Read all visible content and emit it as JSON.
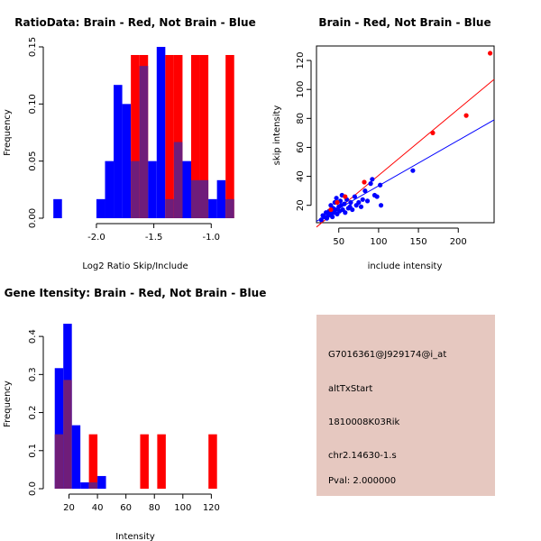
{
  "colors": {
    "brain": "#ff0000",
    "not_brain": "#0000ff",
    "overlap": "#6f1d7a",
    "info_bg": "#e6c8c0",
    "pval": "#b00000"
  },
  "chart_data": [
    {
      "id": "ratio",
      "type": "bar",
      "title": "RatioData: Brain - Red, Not Brain - Blue",
      "xlabel": "Log2 Ratio Skip/Include",
      "ylabel": "Frequency",
      "xlim": [
        -2.4,
        -0.9
      ],
      "ylim": [
        0,
        0.15
      ],
      "x_ticks": [
        {
          "v": -2.0,
          "label": "-2.0"
        },
        {
          "v": -1.5,
          "label": "-1.5"
        },
        {
          "v": -1.0,
          "label": "-1.0"
        }
      ],
      "y_ticks": [
        {
          "v": 0,
          "label": "0.00"
        },
        {
          "v": 0.05,
          "label": "0.05"
        },
        {
          "v": 0.1,
          "label": "0.10"
        },
        {
          "v": 0.15,
          "label": "0.15"
        }
      ],
      "bin_start": -2.375,
      "bin_width": 0.075,
      "series": [
        {
          "name": "Not Brain",
          "color": "#0000ff",
          "values": [
            0.0167,
            0,
            0,
            0,
            0,
            0.0167,
            0.05,
            0.1167,
            0.1,
            0.05,
            0.1333,
            0.05,
            0.15,
            0.0167,
            0.0667,
            0.05,
            0.0333,
            0.0333,
            0.0167,
            0.0333,
            0.0167
          ]
        },
        {
          "name": "Brain",
          "color": "#ff0000",
          "values": [
            0,
            0,
            0,
            0,
            0,
            0,
            0,
            0,
            0,
            0.1429,
            0.1429,
            0,
            0,
            0.1429,
            0.1429,
            0,
            0.1429,
            0.1429,
            0,
            0,
            0.1429
          ]
        }
      ]
    },
    {
      "id": "scatter",
      "type": "scatter",
      "title": "Brain - Red, Not Brain - Blue",
      "xlabel": "include intensity",
      "ylabel": "skip intensity",
      "xlim": [
        22,
        245
      ],
      "ylim": [
        8,
        130
      ],
      "x_ticks": [
        {
          "v": 50,
          "label": "50"
        },
        {
          "v": 100,
          "label": "100"
        },
        {
          "v": 150,
          "label": "150"
        },
        {
          "v": 200,
          "label": "200"
        }
      ],
      "y_ticks": [
        {
          "v": 20,
          "label": "20"
        },
        {
          "v": 40,
          "label": "40"
        },
        {
          "v": 60,
          "label": "60"
        },
        {
          "v": 80,
          "label": "80"
        },
        {
          "v": 100,
          "label": "100"
        },
        {
          "v": 120,
          "label": "120"
        }
      ],
      "series": [
        {
          "name": "Not Brain",
          "color": "#0000ff",
          "points": [
            [
              28,
              10
            ],
            [
              30,
              13
            ],
            [
              32,
              12
            ],
            [
              34,
              15
            ],
            [
              35,
              11
            ],
            [
              37,
              13
            ],
            [
              38,
              16
            ],
            [
              40,
              14
            ],
            [
              40,
              20
            ],
            [
              42,
              12
            ],
            [
              43,
              18
            ],
            [
              44,
              15
            ],
            [
              45,
              22
            ],
            [
              46,
              17
            ],
            [
              47,
              25
            ],
            [
              48,
              14
            ],
            [
              50,
              19
            ],
            [
              51,
              16
            ],
            [
              52,
              23
            ],
            [
              53,
              20
            ],
            [
              54,
              27
            ],
            [
              55,
              17
            ],
            [
              57,
              21
            ],
            [
              58,
              15
            ],
            [
              60,
              24
            ],
            [
              62,
              18
            ],
            [
              64,
              19
            ],
            [
              65,
              22
            ],
            [
              67,
              17
            ],
            [
              70,
              26
            ],
            [
              72,
              20
            ],
            [
              75,
              22
            ],
            [
              78,
              19
            ],
            [
              80,
              24
            ],
            [
              83,
              30
            ],
            [
              86,
              23
            ],
            [
              90,
              35
            ],
            [
              92,
              38
            ],
            [
              95,
              27
            ],
            [
              98,
              26
            ],
            [
              102,
              34
            ],
            [
              103,
              20
            ],
            [
              143,
              44
            ]
          ],
          "fit": [
            [
              22,
              9
            ],
            [
              245,
              79
            ]
          ]
        },
        {
          "name": "Brain",
          "color": "#ff0000",
          "points": [
            [
              40,
              17
            ],
            [
              48,
              22
            ],
            [
              58,
              26
            ],
            [
              82,
              36
            ],
            [
              168,
              70
            ],
            [
              210,
              82
            ],
            [
              240,
              125
            ]
          ],
          "fit": [
            [
              22,
              5
            ],
            [
              245,
              107
            ]
          ]
        }
      ]
    },
    {
      "id": "gene",
      "type": "bar",
      "title": "Gene Itensity: Brain - Red, Not Brain - Blue",
      "xlabel": "Intensity",
      "ylabel": "Frequency",
      "xlim": [
        7,
        128
      ],
      "ylim": [
        0,
        0.45
      ],
      "x_ticks": [
        {
          "v": 20,
          "label": "20"
        },
        {
          "v": 40,
          "label": "40"
        },
        {
          "v": 60,
          "label": "60"
        },
        {
          "v": 80,
          "label": "80"
        },
        {
          "v": 100,
          "label": "100"
        },
        {
          "v": 120,
          "label": "120"
        }
      ],
      "y_ticks": [
        {
          "v": 0,
          "label": "0.0"
        },
        {
          "v": 0.1,
          "label": "0.1"
        },
        {
          "v": 0.2,
          "label": "0.2"
        },
        {
          "v": 0.3,
          "label": "0.3"
        },
        {
          "v": 0.4,
          "label": "0.4"
        }
      ],
      "bin_start": 10,
      "bin_width": 6,
      "series": [
        {
          "name": "Not Brain",
          "color": "#0000ff",
          "values": [
            0.3167,
            0.4333,
            0.1667,
            0.0167,
            0.0167,
            0.0333,
            0,
            0,
            0,
            0,
            0,
            0,
            0,
            0,
            0,
            0,
            0,
            0,
            0
          ]
        },
        {
          "name": "Brain",
          "color": "#ff0000",
          "values": [
            0.1429,
            0.2857,
            0,
            0,
            0.1429,
            0,
            0,
            0,
            0,
            0,
            0.1429,
            0,
            0.1429,
            0,
            0,
            0,
            0,
            0,
            0.1429
          ]
        }
      ]
    }
  ],
  "info_panel": {
    "probe_id": "G7016361@J929174@i_at",
    "event_type": "altTxStart",
    "gene_symbol": "1810008K03Rik",
    "locus": "chr2.14630-1.s",
    "pval": "Pval: 2.000000"
  }
}
